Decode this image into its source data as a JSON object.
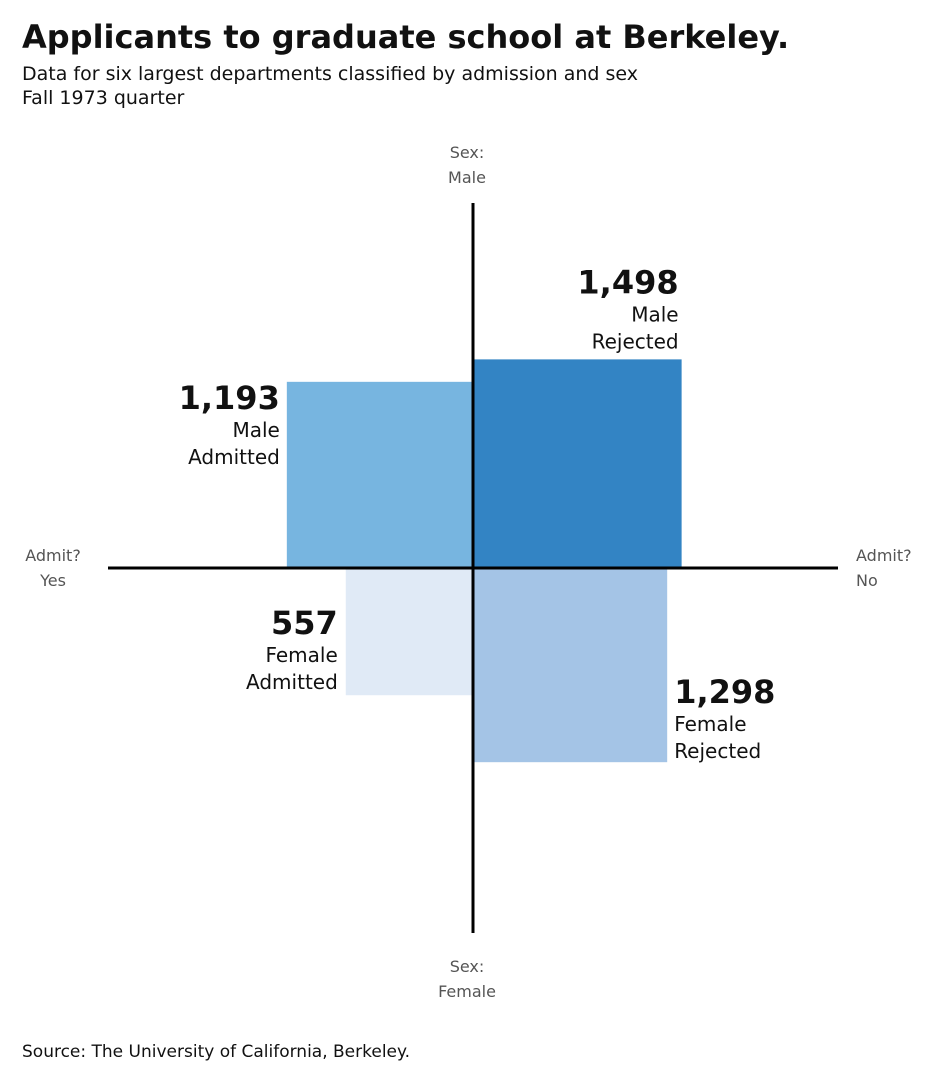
{
  "chart_data": {
    "type": "fourfold",
    "title": "Applicants to graduate school at Berkeley.",
    "subtitle": [
      "Data for six largest departments classified by admission and sex",
      "Fall 1973 quarter"
    ],
    "axis_labels": {
      "top": [
        "Sex:",
        "Male"
      ],
      "bottom": [
        "Sex:",
        "Female"
      ],
      "left": [
        "Admit?",
        "Yes"
      ],
      "right": [
        "Admit?",
        "No"
      ]
    },
    "categories": [
      [
        "Male",
        "Admitted"
      ],
      [
        "Male",
        "Rejected"
      ],
      [
        "Female",
        "Admitted"
      ],
      [
        "Female",
        "Rejected"
      ]
    ],
    "values": [
      1193,
      1498,
      557,
      1298
    ],
    "value_labels": [
      "1,193",
      "1,498",
      "557",
      "1,298"
    ],
    "quadrants": [
      "top-left",
      "top-right",
      "bottom-left",
      "bottom-right"
    ],
    "colors": [
      "#77b5e0",
      "#3384c4",
      "#e0eaf6",
      "#a4c4e6"
    ],
    "source": "Source: The University of California, Berkeley."
  }
}
